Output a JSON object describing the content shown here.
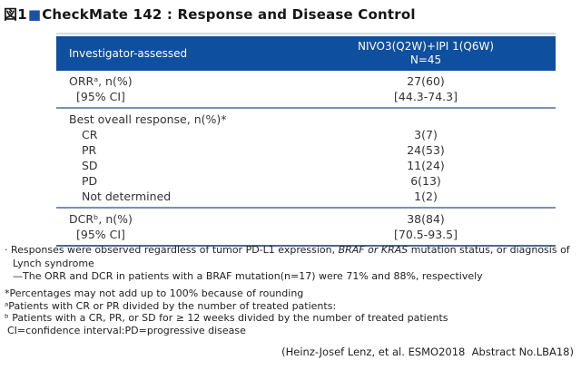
{
  "title": {
    "prefix": "図1",
    "square": "■",
    "text": "CheckMate 142 : Response and Disease Control"
  },
  "table": {
    "header": {
      "left": "Investigator-assessed",
      "right_line1": "NIVO3(Q2W)+IPI 1(Q6W)",
      "right_line2": "N=45"
    },
    "sections": [
      {
        "rows": [
          {
            "label": "ORRᵃ, n(%)",
            "value": "27(60)"
          },
          {
            "label": "[95% CI]",
            "value": "[44.3-74.3]"
          }
        ]
      },
      {
        "rows": [
          {
            "label": "Best oveall response, n(%)*",
            "value": ""
          },
          {
            "label": "CR",
            "value": "3(7)"
          },
          {
            "label": "PR",
            "value": "24(53)"
          },
          {
            "label": "SD",
            "value": "11(24)"
          },
          {
            "label": "PD",
            "value": "6(13)"
          },
          {
            "label": "Not determined",
            "value": "1(2)"
          }
        ]
      },
      {
        "rows": [
          {
            "label": "DCRᵇ, n(%)",
            "value": "38(84)"
          },
          {
            "label": "[95% CI]",
            "value": "[70.5-93.5]"
          }
        ]
      }
    ]
  },
  "notes": {
    "bullet": "· ",
    "line1_pre": "Responses were observed regardless of tumor PD-L1 expression, ",
    "line1_italic": "BRAF or KRAS",
    "line1_post": " mutation status, or diagnosis of Lynch syndrome",
    "line2": "—The ORR and DCR in patients with a BRAF mutation(n=17) were 71% and 88%, respectively"
  },
  "footnotes": [
    "*Percentages may not add up to 100% because of rounding",
    "ᵃPatients with CR or PR divided by the number of treated patients:",
    "ᵇ Patients with a CR, PR, or SD for ≥ 12 weeks divided by the number of treated patients",
    "CI=confidence interval:PD=progressive disease"
  ],
  "citation": "(Heinz-Josef Lenz, et al. ESMO2018  Abstract No.LBA18)",
  "colors": {
    "header_bg": "#0f4f9f",
    "accent_square": "#1d50a2",
    "section_line": "#7d92aa",
    "top_line": "#c9dff0"
  }
}
